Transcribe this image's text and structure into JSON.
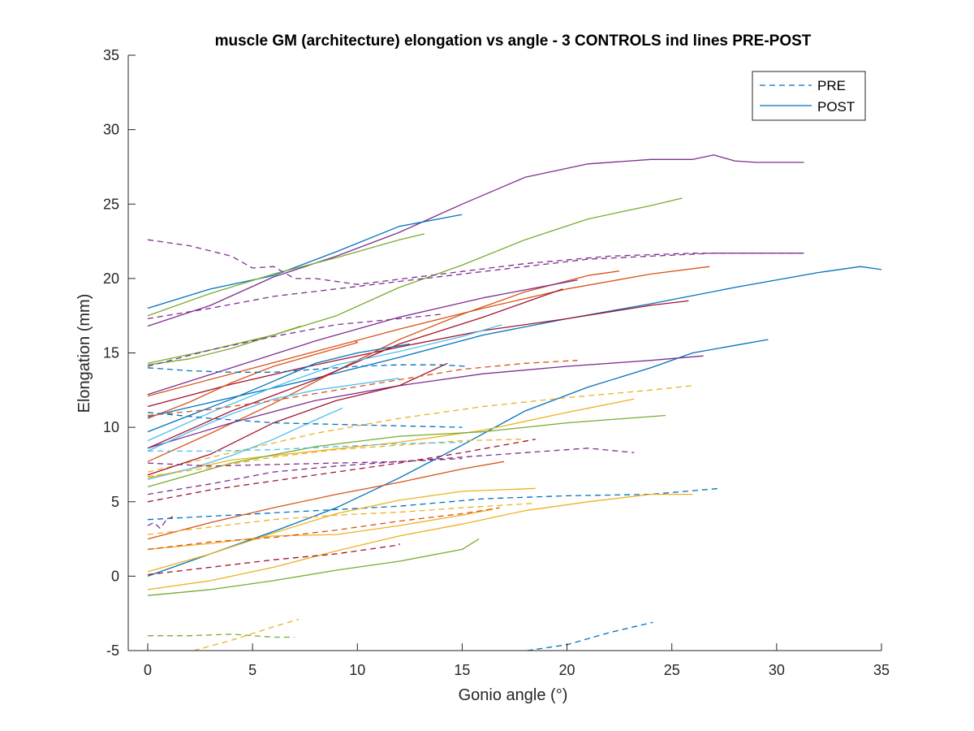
{
  "chart_data": {
    "type": "line",
    "title": "muscle GM (architecture) elongation vs angle - 3 CONTROLS ind lines PRE-POST",
    "xlabel": "Gonio angle (°)",
    "ylabel": "Elongation (mm)",
    "xlim": [
      0,
      35
    ],
    "ylim": [
      -5,
      35
    ],
    "xticks": [
      0,
      5,
      10,
      15,
      20,
      25,
      30,
      35
    ],
    "yticks": [
      -5,
      0,
      5,
      10,
      15,
      20,
      25,
      30,
      35
    ],
    "grid": false,
    "legend": {
      "placement": "top-right",
      "entries": [
        {
          "label": "PRE",
          "style": "dashed",
          "color": "#0072BD"
        },
        {
          "label": "POST",
          "style": "solid",
          "color": "#0072BD"
        }
      ]
    },
    "series": [
      {
        "style": "solid",
        "color": "#7E2F8E",
        "x": [
          0,
          3,
          6,
          9,
          12,
          15,
          18,
          21,
          24,
          26,
          27,
          28,
          29,
          30,
          31.3
        ],
        "y": [
          16.8,
          18.2,
          20.1,
          21.5,
          23.1,
          25.0,
          26.8,
          27.7,
          28.0,
          28.0,
          28.3,
          27.9,
          27.8,
          27.8,
          27.8
        ]
      },
      {
        "style": "solid",
        "color": "#77AC30",
        "x": [
          0,
          3,
          6,
          9,
          12,
          15,
          18,
          21,
          24,
          25.5
        ],
        "y": [
          14.3,
          15.2,
          16.2,
          17.5,
          19.4,
          20.9,
          22.6,
          24.0,
          24.9,
          25.4
        ]
      },
      {
        "style": "solid",
        "color": "#0072BD",
        "x": [
          0,
          3,
          6,
          9,
          12,
          15
        ],
        "y": [
          18.0,
          19.3,
          20.2,
          21.8,
          23.5,
          24.3
        ]
      },
      {
        "style": "solid",
        "color": "#77AC30",
        "x": [
          0,
          3,
          6,
          9,
          12,
          13.2
        ],
        "y": [
          17.5,
          19.0,
          20.3,
          21.4,
          22.6,
          23.0
        ]
      },
      {
        "style": "dashed",
        "color": "#7E2F8E",
        "x": [
          0,
          2,
          4,
          5,
          6,
          7,
          8,
          10,
          14,
          18,
          22,
          26,
          31.3
        ],
        "y": [
          22.6,
          22.2,
          21.5,
          20.7,
          20.8,
          20.0,
          20.0,
          19.6,
          20.3,
          21.0,
          21.5,
          21.7,
          21.7
        ]
      },
      {
        "style": "dashed",
        "color": "#7E2F8E",
        "x": [
          0,
          3,
          6,
          9,
          12,
          15,
          18,
          21,
          24,
          27,
          30,
          31.3
        ],
        "y": [
          17.3,
          18.0,
          18.8,
          19.3,
          19.8,
          20.3,
          20.8,
          21.3,
          21.5,
          21.7,
          21.7,
          21.7
        ]
      },
      {
        "style": "solid",
        "color": "#0072BD",
        "x": [
          0,
          4,
          8,
          12,
          16,
          20,
          24,
          28,
          32,
          34,
          35
        ],
        "y": [
          10.7,
          12.0,
          13.3,
          14.7,
          16.2,
          17.3,
          18.3,
          19.4,
          20.4,
          20.8,
          20.6
        ]
      },
      {
        "style": "solid",
        "color": "#D95319",
        "x": [
          0,
          4,
          8,
          12,
          16,
          20,
          24,
          26.8
        ],
        "y": [
          12.1,
          13.6,
          15.1,
          16.6,
          18.0,
          19.3,
          20.3,
          20.8
        ]
      },
      {
        "style": "solid",
        "color": "#A2142F",
        "x": [
          0,
          4,
          8,
          12,
          16,
          20,
          24,
          25.8
        ],
        "y": [
          11.4,
          12.9,
          14.2,
          15.4,
          16.5,
          17.3,
          18.2,
          18.5
        ]
      },
      {
        "style": "solid",
        "color": "#D95319",
        "x": [
          0,
          3,
          6,
          9,
          12,
          15,
          18,
          21,
          22.5
        ],
        "y": [
          7.7,
          9.6,
          11.6,
          13.8,
          15.9,
          17.6,
          19.1,
          20.2,
          20.5
        ]
      },
      {
        "style": "solid",
        "color": "#7E2F8E",
        "x": [
          0,
          4,
          8,
          12,
          16,
          20.5
        ],
        "y": [
          12.2,
          14.0,
          15.8,
          17.4,
          18.7,
          19.9
        ]
      },
      {
        "style": "solid",
        "color": "#A2142F",
        "x": [
          0,
          4,
          8,
          12,
          16,
          19.8
        ],
        "y": [
          8.6,
          11.1,
          13.2,
          15.6,
          17.4,
          19.3
        ]
      },
      {
        "style": "solid",
        "color": "#0072BD",
        "x": [
          0,
          3,
          6,
          9,
          12,
          15,
          18,
          21,
          24,
          26,
          28,
          29.6
        ],
        "y": [
          0.0,
          1.5,
          3.0,
          4.6,
          6.6,
          8.8,
          11.1,
          12.7,
          14.0,
          15.0,
          15.5,
          15.9
        ]
      },
      {
        "style": "solid",
        "color": "#7E2F8E",
        "x": [
          0,
          4,
          8,
          12,
          16,
          20,
          24,
          26.5
        ],
        "y": [
          8.6,
          10.3,
          11.8,
          12.8,
          13.6,
          14.1,
          14.5,
          14.8
        ]
      },
      {
        "style": "dashed",
        "color": "#EDB120",
        "x": [
          0,
          4,
          8,
          12,
          16,
          20,
          24,
          26
        ],
        "y": [
          7.0,
          8.3,
          9.6,
          10.6,
          11.4,
          12.0,
          12.5,
          12.8
        ]
      },
      {
        "style": "solid",
        "color": "#EDB120",
        "x": [
          0,
          4,
          8,
          12,
          16,
          20,
          23.2
        ],
        "y": [
          6.6,
          7.8,
          8.4,
          9.0,
          9.8,
          11.0,
          11.9
        ]
      },
      {
        "style": "solid",
        "color": "#77AC30",
        "x": [
          0,
          4,
          8,
          12,
          16,
          20,
          24.7
        ],
        "y": [
          6.0,
          7.6,
          8.7,
          9.4,
          9.7,
          10.3,
          10.8
        ]
      },
      {
        "style": "solid",
        "color": "#4DBEEE",
        "x": [
          0,
          3,
          6,
          9,
          12,
          15,
          16.9
        ],
        "y": [
          9.1,
          11.0,
          12.7,
          14.2,
          15.1,
          16.1,
          16.9
        ]
      },
      {
        "style": "solid",
        "color": "#D95319",
        "x": [
          0,
          2,
          4,
          6,
          8,
          10,
          9.9
        ],
        "y": [
          10.6,
          11.7,
          13.0,
          14.1,
          14.9,
          15.7,
          15.8
        ]
      },
      {
        "style": "solid",
        "color": "#0072BD",
        "x": [
          0,
          2,
          4,
          6,
          8,
          10,
          12.5
        ],
        "y": [
          9.7,
          10.8,
          11.9,
          13.1,
          14.3,
          15.0,
          15.6
        ]
      },
      {
        "style": "solid",
        "color": "#A2142F",
        "x": [
          0,
          3,
          6,
          9,
          12,
          14.3
        ],
        "y": [
          6.8,
          8.2,
          10.3,
          11.8,
          12.8,
          14.3
        ]
      },
      {
        "style": "solid",
        "color": "#4DBEEE",
        "x": [
          0,
          2,
          4,
          6,
          8,
          10,
          12
        ],
        "y": [
          8.4,
          9.7,
          10.9,
          11.9,
          12.5,
          12.9,
          13.3
        ]
      },
      {
        "style": "solid",
        "color": "#4DBEEE",
        "x": [
          0,
          2,
          4,
          6,
          8,
          9.3
        ],
        "y": [
          6.5,
          7.2,
          8.1,
          9.2,
          10.5,
          11.3
        ]
      },
      {
        "style": "solid",
        "color": "#77AC30",
        "x": [
          0,
          2,
          4,
          6,
          7.3
        ],
        "y": [
          14.2,
          14.6,
          15.3,
          16.2,
          16.8
        ]
      },
      {
        "style": "dashed",
        "color": "#0072BD",
        "x": [
          0,
          2,
          4,
          6,
          8,
          10,
          12,
          14,
          15.2
        ],
        "y": [
          14.0,
          13.8,
          13.7,
          13.7,
          13.9,
          14.1,
          14.2,
          14.2,
          14.1
        ]
      },
      {
        "style": "dashed",
        "color": "#D95319",
        "x": [
          0,
          3,
          6,
          9,
          12,
          15,
          18,
          20.5
        ],
        "y": [
          10.8,
          11.2,
          11.8,
          12.5,
          13.2,
          13.9,
          14.3,
          14.5
        ]
      },
      {
        "style": "dashed",
        "color": "#0072BD",
        "x": [
          0,
          3,
          6,
          9,
          12,
          15
        ],
        "y": [
          11.0,
          10.6,
          10.3,
          10.2,
          10.1,
          10.0
        ]
      },
      {
        "style": "dashed",
        "color": "#EDB120",
        "x": [
          0,
          3,
          6,
          9,
          12,
          15,
          17.8
        ],
        "y": [
          6.7,
          7.3,
          8.0,
          8.5,
          8.8,
          9.1,
          9.2
        ]
      },
      {
        "style": "dashed",
        "color": "#7E2F8E",
        "x": [
          0,
          3,
          6,
          9,
          12,
          15,
          18,
          21,
          23.2
        ],
        "y": [
          5.5,
          6.2,
          7.0,
          7.4,
          7.7,
          8.0,
          8.3,
          8.6,
          8.3
        ]
      },
      {
        "style": "dashed",
        "color": "#A2142F",
        "x": [
          0,
          3,
          6,
          9,
          12,
          15,
          18.5
        ],
        "y": [
          5.0,
          5.8,
          6.4,
          7.0,
          7.6,
          8.3,
          9.2
        ]
      },
      {
        "style": "dashed",
        "color": "#7E2F8E",
        "x": [
          0,
          3,
          6,
          9,
          12,
          14
        ],
        "y": [
          14.1,
          15.2,
          16.1,
          16.9,
          17.3,
          17.6
        ]
      },
      {
        "style": "dashed",
        "color": "#4DBEEE",
        "x": [
          0,
          3,
          6,
          9,
          12,
          15
        ],
        "y": [
          8.4,
          8.4,
          8.5,
          8.7,
          8.9,
          9.0
        ]
      },
      {
        "style": "dashed",
        "color": "#7E2F8E",
        "x": [
          0,
          3,
          6,
          9,
          12,
          15
        ],
        "y": [
          7.6,
          7.4,
          7.5,
          7.6,
          7.7,
          7.9
        ]
      },
      {
        "style": "dashed",
        "color": "#0072BD",
        "x": [
          0,
          4,
          8,
          12,
          16,
          20,
          24,
          27.3
        ],
        "y": [
          3.8,
          4.1,
          4.4,
          4.7,
          5.2,
          5.4,
          5.5,
          5.9
        ]
      },
      {
        "style": "solid",
        "color": "#EDB120",
        "x": [
          0,
          3,
          6,
          9,
          12,
          15,
          18.5
        ],
        "y": [
          0.3,
          1.5,
          2.9,
          4.2,
          5.1,
          5.7,
          5.9
        ]
      },
      {
        "style": "solid",
        "color": "#EDB120",
        "x": [
          0,
          3,
          6,
          9,
          12,
          15,
          18,
          21,
          24,
          26
        ],
        "y": [
          -0.9,
          -0.3,
          0.6,
          1.7,
          2.7,
          3.5,
          4.4,
          5.0,
          5.5,
          5.5
        ]
      },
      {
        "style": "solid",
        "color": "#D95319",
        "x": [
          0,
          3,
          6,
          9,
          12,
          15,
          17
        ],
        "y": [
          2.5,
          3.6,
          4.6,
          5.5,
          6.3,
          7.2,
          7.7
        ]
      },
      {
        "style": "solid",
        "color": "#EDB120",
        "x": [
          0,
          3,
          6,
          9,
          12,
          15,
          16.5
        ],
        "y": [
          1.8,
          2.2,
          2.7,
          2.8,
          3.4,
          4.1,
          4.5
        ]
      },
      {
        "style": "solid",
        "color": "#77AC30",
        "x": [
          0,
          3,
          6,
          9,
          12,
          15,
          15.8
        ],
        "y": [
          -1.3,
          -0.9,
          -0.3,
          0.4,
          1.0,
          1.8,
          2.5
        ]
      },
      {
        "style": "dashed",
        "color": "#EDB120",
        "x": [
          0,
          3,
          6,
          9,
          12,
          15,
          18.5
        ],
        "y": [
          2.8,
          3.3,
          3.8,
          4.1,
          4.3,
          4.6,
          4.9
        ]
      },
      {
        "style": "dashed",
        "color": "#D95319",
        "x": [
          0,
          3,
          6,
          9,
          12,
          15,
          16.8
        ],
        "y": [
          1.8,
          2.3,
          2.6,
          3.1,
          3.7,
          4.2,
          4.6
        ]
      },
      {
        "style": "dashed",
        "color": "#A2142F",
        "x": [
          0,
          3,
          6,
          9,
          12,
          12
        ],
        "y": [
          0.1,
          0.6,
          1.1,
          1.5,
          2.1,
          2.2
        ]
      },
      {
        "style": "dashed",
        "color": "#7E2F8E",
        "x": [
          0,
          0.3,
          0.6,
          0.9,
          1.2
        ],
        "y": [
          3.4,
          3.6,
          3.2,
          3.8,
          4.0
        ]
      },
      {
        "style": "dashed",
        "color": "#77AC30",
        "x": [
          0,
          2,
          4,
          6,
          7
        ],
        "y": [
          -4.0,
          -4.0,
          -3.9,
          -4.1,
          -4.1
        ]
      },
      {
        "style": "dashed",
        "color": "#EDB120",
        "x": [
          2.2,
          4,
          6,
          7.2
        ],
        "y": [
          -5.0,
          -4.3,
          -3.4,
          -2.9
        ]
      },
      {
        "style": "dashed",
        "color": "#0072BD",
        "x": [
          18.1,
          20,
          22,
          24.1
        ],
        "y": [
          -5.0,
          -4.6,
          -3.8,
          -3.1
        ]
      }
    ]
  }
}
